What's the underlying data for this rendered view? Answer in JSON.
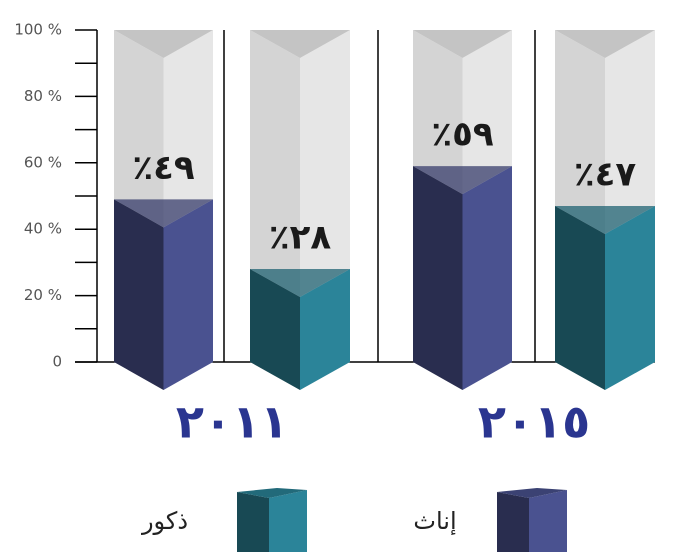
{
  "chart_data": {
    "type": "bar3d",
    "categories": [
      "٢٠١١",
      "٢٠١٥"
    ],
    "series": [
      {
        "name": "إناث",
        "color": "#4a5290",
        "values": [
          49,
          59
        ],
        "value_labels": [
          "٪٤٩",
          "٪٥٩"
        ]
      },
      {
        "name": "ذكور",
        "color": "#2b8499",
        "values": [
          28,
          47
        ],
        "value_labels": [
          "٪٢٨",
          "٪٤٧"
        ]
      }
    ],
    "ylim": [
      0,
      100
    ],
    "yticks": [
      0,
      {
        "value": 20,
        "label": "20 %"
      },
      {
        "value": 40,
        "label": "40 %"
      },
      {
        "value": 60,
        "label": "60 %"
      },
      {
        "value": 80,
        "label": "80 %"
      },
      {
        "value": 100,
        "label": "100 %"
      }
    ]
  }
}
